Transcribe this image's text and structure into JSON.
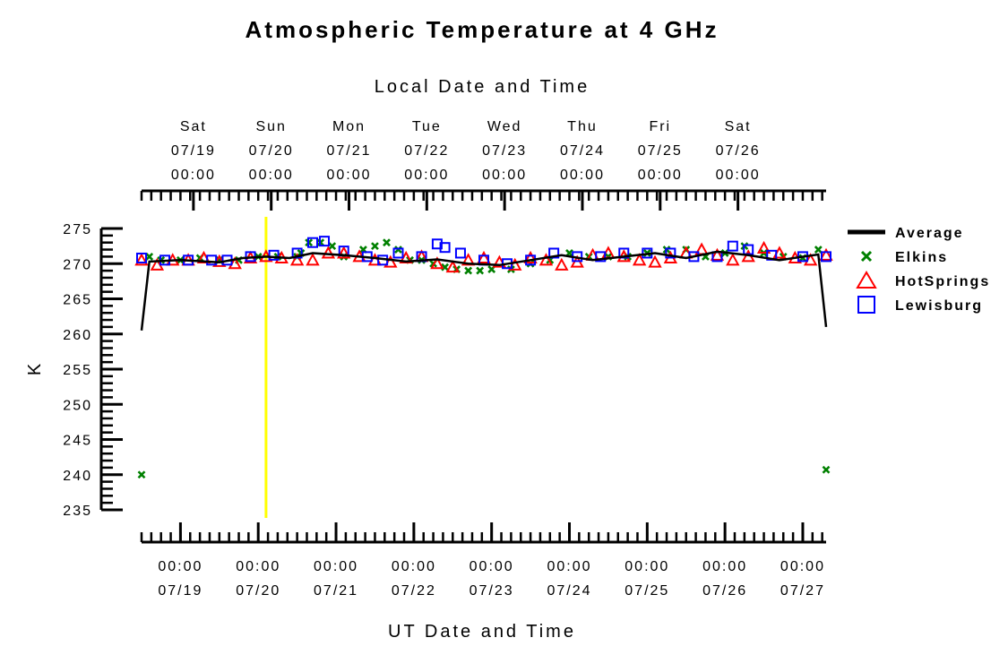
{
  "chart_data": {
    "type": "line",
    "title": "Atmospheric Temperature at 4 GHz",
    "top_axis_label": "Local Date and Time",
    "xlabel": "UT Date and Time",
    "ylabel": "K",
    "ylim": [
      235,
      275
    ],
    "yticks": [
      235,
      240,
      245,
      250,
      255,
      260,
      265,
      270,
      275
    ],
    "x_range_days_from_0718_1200UT": [
      0,
      8.8
    ],
    "top_ticks": [
      {
        "day": "Sat",
        "date": "07/19",
        "time": "00:00"
      },
      {
        "day": "Sun",
        "date": "07/20",
        "time": "00:00"
      },
      {
        "day": "Mon",
        "date": "07/21",
        "time": "00:00"
      },
      {
        "day": "Tue",
        "date": "07/22",
        "time": "00:00"
      },
      {
        "day": "Wed",
        "date": "07/23",
        "time": "00:00"
      },
      {
        "day": "Thu",
        "date": "07/24",
        "time": "00:00"
      },
      {
        "day": "Fri",
        "date": "07/25",
        "time": "00:00"
      },
      {
        "day": "Sat",
        "date": "07/26",
        "time": "00:00"
      }
    ],
    "bottom_ticks": [
      {
        "time": "00:00",
        "date": "07/19"
      },
      {
        "time": "00:00",
        "date": "07/20"
      },
      {
        "time": "00:00",
        "date": "07/21"
      },
      {
        "time": "00:00",
        "date": "07/22"
      },
      {
        "time": "00:00",
        "date": "07/23"
      },
      {
        "time": "00:00",
        "date": "07/24"
      },
      {
        "time": "00:00",
        "date": "07/25"
      },
      {
        "time": "00:00",
        "date": "07/26"
      },
      {
        "time": "00:00",
        "date": "07/27"
      }
    ],
    "current_time_marker_x": 1.6,
    "legend": [
      "Average",
      "Elkins",
      "HotSprings",
      "Lewisburg"
    ],
    "legend_position": "right",
    "colors": {
      "Average": "#000000",
      "Elkins": "#008000",
      "HotSprings": "#ff0000",
      "Lewisburg": "#0000ff",
      "marker_line": "#ffff00"
    },
    "series": [
      {
        "name": "Average",
        "style": "line",
        "x": [
          0,
          0.1,
          0.5,
          1.0,
          1.3,
          1.6,
          1.9,
          2.2,
          2.6,
          3.0,
          3.4,
          3.8,
          4.2,
          4.6,
          5.0,
          5.4,
          5.8,
          6.2,
          6.6,
          7.0,
          7.4,
          7.8,
          8.2,
          8.7,
          8.8
        ],
        "y": [
          260.5,
          270.3,
          270.5,
          270.2,
          270.8,
          271.0,
          270.8,
          271.5,
          271.2,
          270.8,
          270.3,
          270.6,
          270.0,
          269.8,
          270.5,
          271.2,
          270.5,
          271.0,
          271.5,
          270.8,
          271.7,
          271.2,
          270.5,
          271.3,
          261.0
        ]
      },
      {
        "name": "Elkins",
        "style": "x",
        "x": [
          0,
          0.1,
          0.25,
          0.5,
          0.75,
          1.0,
          1.25,
          1.5,
          1.75,
          2.0,
          2.05,
          2.15,
          2.3,
          2.45,
          2.6,
          2.85,
          3.0,
          3.15,
          3.3,
          3.45,
          3.6,
          3.75,
          3.9,
          4.05,
          4.2,
          4.35,
          4.5,
          4.75,
          5.0,
          5.25,
          5.5,
          5.75,
          6.0,
          6.25,
          6.5,
          6.75,
          7.0,
          7.25,
          7.5,
          7.75,
          8.0,
          8.25,
          8.5,
          8.7,
          8.8
        ],
        "y": [
          240.0,
          271.0,
          270.5,
          270.5,
          270.8,
          270.5,
          270.5,
          271.0,
          271.0,
          271.0,
          271.5,
          273.0,
          273.0,
          272.5,
          271.0,
          272.0,
          272.5,
          273.0,
          272.0,
          270.5,
          270.5,
          270.0,
          269.5,
          269.2,
          269.0,
          269.0,
          269.2,
          269.2,
          270.0,
          270.5,
          271.5,
          271.0,
          271.0,
          271.0,
          271.5,
          272.0,
          272.0,
          271.0,
          271.5,
          272.5,
          271.5,
          271.0,
          270.8,
          272.0,
          240.7
        ]
      },
      {
        "name": "HotSprings",
        "style": "triangle",
        "x": [
          0,
          0.2,
          0.4,
          0.6,
          0.8,
          1.0,
          1.2,
          1.4,
          1.6,
          1.8,
          2.0,
          2.2,
          2.4,
          2.6,
          2.8,
          3.0,
          3.2,
          3.4,
          3.6,
          3.8,
          4.0,
          4.2,
          4.4,
          4.6,
          4.8,
          5.0,
          5.2,
          5.4,
          5.6,
          5.8,
          6.0,
          6.2,
          6.4,
          6.6,
          6.8,
          7.0,
          7.2,
          7.4,
          7.6,
          7.8,
          8.0,
          8.2,
          8.4,
          8.6,
          8.8
        ],
        "y": [
          270.5,
          269.8,
          270.5,
          270.5,
          270.8,
          270.3,
          270.0,
          270.8,
          271.0,
          270.8,
          270.5,
          270.5,
          271.5,
          271.5,
          271.0,
          270.5,
          270.2,
          270.8,
          271.0,
          270.0,
          269.5,
          270.5,
          270.8,
          270.2,
          269.8,
          270.8,
          270.5,
          269.8,
          270.2,
          271.2,
          271.5,
          271.0,
          270.5,
          270.2,
          270.8,
          271.5,
          272.0,
          271.2,
          270.5,
          271.0,
          272.2,
          271.5,
          270.8,
          270.5,
          271.2
        ]
      },
      {
        "name": "Lewisburg",
        "style": "square",
        "x": [
          0,
          0.3,
          0.6,
          0.9,
          1.1,
          1.4,
          1.7,
          2.0,
          2.2,
          2.35,
          2.6,
          2.9,
          3.1,
          3.3,
          3.6,
          3.8,
          3.9,
          4.1,
          4.4,
          4.7,
          5.0,
          5.3,
          5.6,
          5.9,
          6.2,
          6.5,
          6.8,
          7.1,
          7.4,
          7.6,
          7.8,
          8.1,
          8.5,
          8.8
        ],
        "y": [
          270.8,
          270.5,
          270.5,
          270.5,
          270.5,
          271.0,
          271.2,
          271.5,
          273.0,
          273.2,
          271.8,
          271.0,
          270.5,
          271.5,
          271.0,
          272.8,
          272.3,
          271.5,
          270.5,
          270.0,
          270.5,
          271.5,
          271.0,
          271.0,
          271.5,
          271.5,
          271.5,
          271.0,
          271.0,
          272.5,
          272.0,
          271.2,
          271.0,
          271.0
        ]
      }
    ]
  }
}
